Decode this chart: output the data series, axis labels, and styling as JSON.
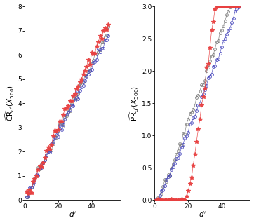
{
  "fig_width": 3.62,
  "fig_height": 3.18,
  "dpi": 100,
  "left_plot": {
    "ylabel_main": "$\\widehat{CR}$",
    "ylabel_sub": "$_{d'}(X_{500})$",
    "xlabel": "$d'$",
    "xlim": [
      0,
      57
    ],
    "ylim": [
      0,
      8
    ],
    "yticks": [
      0,
      1,
      2,
      3,
      4,
      5,
      6,
      7,
      8
    ],
    "xticks": [
      0,
      20,
      40
    ]
  },
  "right_plot": {
    "ylabel_main": "$\\widehat{PR}$",
    "ylabel_sub": "$_{d'}(X_{500})$",
    "xlabel": "$d'$",
    "xlim": [
      0,
      57
    ],
    "ylim": [
      0,
      3
    ],
    "yticks": [
      0,
      0.5,
      1.0,
      1.5,
      2.0,
      2.5,
      3.0
    ],
    "xticks": [
      0,
      20,
      40
    ]
  },
  "colors": {
    "red": "#e84040",
    "blue": "#4444bb",
    "gray": "#777777"
  },
  "marker_size": 2.8,
  "line_width": 0.5
}
